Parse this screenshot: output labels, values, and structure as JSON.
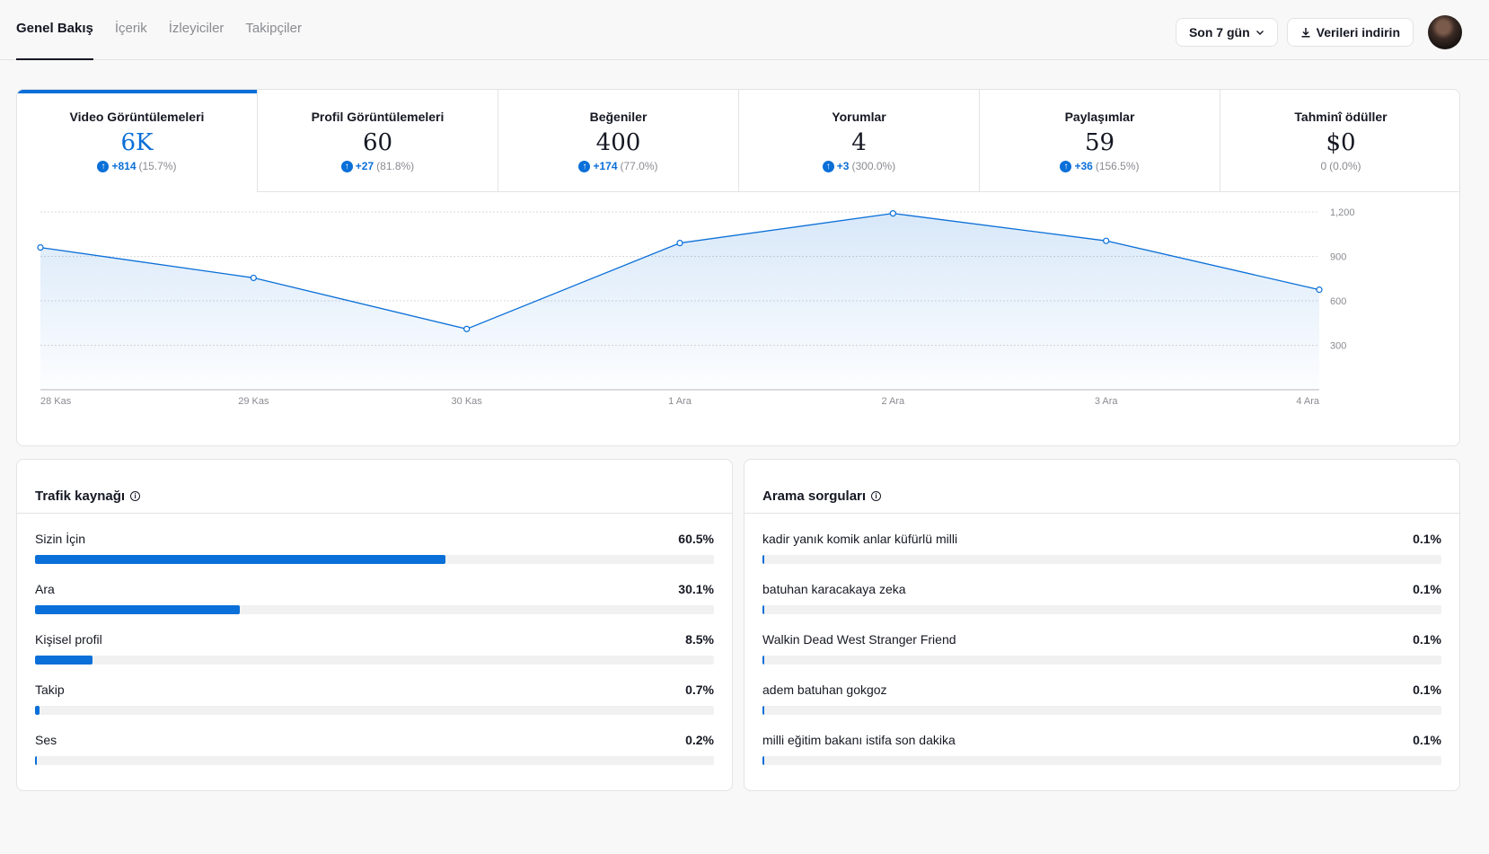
{
  "header": {
    "tabs": [
      "Genel Bakış",
      "İçerik",
      "İzleyiciler",
      "Takipçiler"
    ],
    "active_tab": 0,
    "range_label": "Son 7 gün",
    "download_label": "Verileri indirin"
  },
  "metrics": [
    {
      "label": "Video Görüntülemeleri",
      "value": "6K",
      "delta": "+814",
      "pct": "(15.7%)",
      "up": true
    },
    {
      "label": "Profil Görüntülemeleri",
      "value": "60",
      "delta": "+27",
      "pct": "(81.8%)",
      "up": true
    },
    {
      "label": "Beğeniler",
      "value": "400",
      "delta": "+174",
      "pct": "(77.0%)",
      "up": true
    },
    {
      "label": "Yorumlar",
      "value": "4",
      "delta": "+3",
      "pct": "(300.0%)",
      "up": true
    },
    {
      "label": "Paylaşımlar",
      "value": "59",
      "delta": "+36",
      "pct": "(156.5%)",
      "up": true
    },
    {
      "label": "Tahminî ödüller",
      "value": "$0",
      "delta": "0",
      "pct": "(0.0%)",
      "up": false
    }
  ],
  "chart_data": {
    "type": "area",
    "x": [
      "28 Kas",
      "29 Kas",
      "30 Kas",
      "1 Ara",
      "2 Ara",
      "3 Ara",
      "4 Ara"
    ],
    "values": [
      960,
      755,
      410,
      990,
      1190,
      1005,
      675
    ],
    "ylim": [
      0,
      1200
    ],
    "yticks": [
      300,
      600,
      900,
      1200
    ],
    "ytick_labels": [
      "300",
      "600",
      "900",
      "1,200"
    ],
    "grid": true,
    "color": "#0a6fd8"
  },
  "traffic": {
    "title": "Trafik kaynağı",
    "items": [
      {
        "label": "Sizin İçin",
        "pct_label": "60.5%",
        "pct": 60.5
      },
      {
        "label": "Ara",
        "pct_label": "30.1%",
        "pct": 30.1
      },
      {
        "label": "Kişisel profil",
        "pct_label": "8.5%",
        "pct": 8.5
      },
      {
        "label": "Takip",
        "pct_label": "0.7%",
        "pct": 0.7
      },
      {
        "label": "Ses",
        "pct_label": "0.2%",
        "pct": 0.2
      }
    ]
  },
  "search": {
    "title": "Arama sorguları",
    "items": [
      {
        "label": "kadir yanık komik anlar küfürlü milli",
        "pct_label": "0.1%",
        "pct": 0.1
      },
      {
        "label": "batuhan karacakaya zeka",
        "pct_label": "0.1%",
        "pct": 0.1
      },
      {
        "label": "Walkin Dead West Stranger Friend",
        "pct_label": "0.1%",
        "pct": 0.1
      },
      {
        "label": "adem batuhan gokgoz",
        "pct_label": "0.1%",
        "pct": 0.1
      },
      {
        "label": "milli eğitim bakanı istifa son dakika",
        "pct_label": "0.1%",
        "pct": 0.1
      }
    ]
  }
}
